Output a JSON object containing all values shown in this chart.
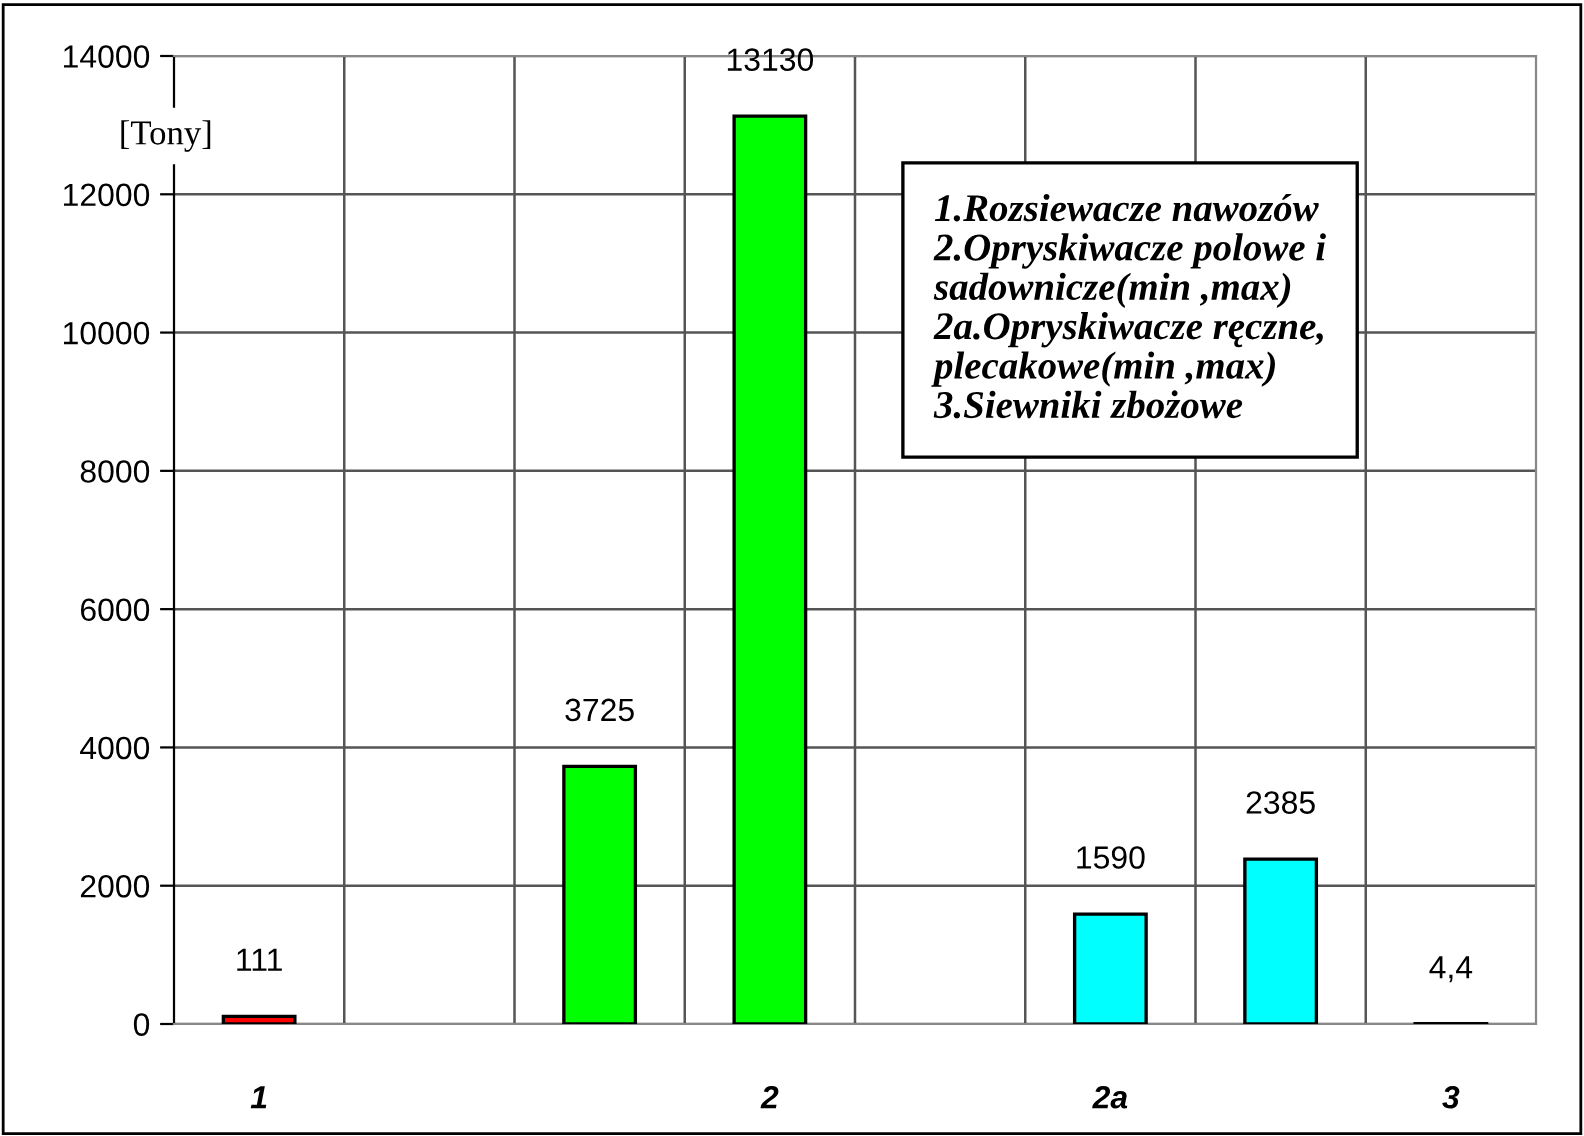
{
  "chart_data": {
    "type": "bar",
    "ylabel": "[Tony]",
    "categories": [
      "1",
      null,
      null,
      "2",
      null,
      "2a",
      null,
      "3"
    ],
    "values": [
      111,
      null,
      3725,
      13130,
      null,
      1590,
      2385,
      4.4
    ],
    "colors": [
      "#ff0000",
      null,
      "#00ff00",
      "#00ff00",
      null,
      "#00ffff",
      "#00ffff",
      "#00ffff"
    ],
    "value_labels": [
      "111",
      null,
      "3725",
      "13130",
      null,
      "1590",
      "2385",
      "4,4"
    ],
    "ylim": [
      0,
      14000
    ],
    "yticks": [
      0,
      2000,
      4000,
      6000,
      8000,
      10000,
      12000,
      14000
    ],
    "grid": true,
    "annotations": [
      "1.Rozsiewacze nawozów\n2.Opryskiwacze polowe i\nsadownicze(min ,max)\n2a.Opryskiwacze ręczne,\nplecakowe(min ,max)\n3.Siewniki zbożowe"
    ]
  }
}
